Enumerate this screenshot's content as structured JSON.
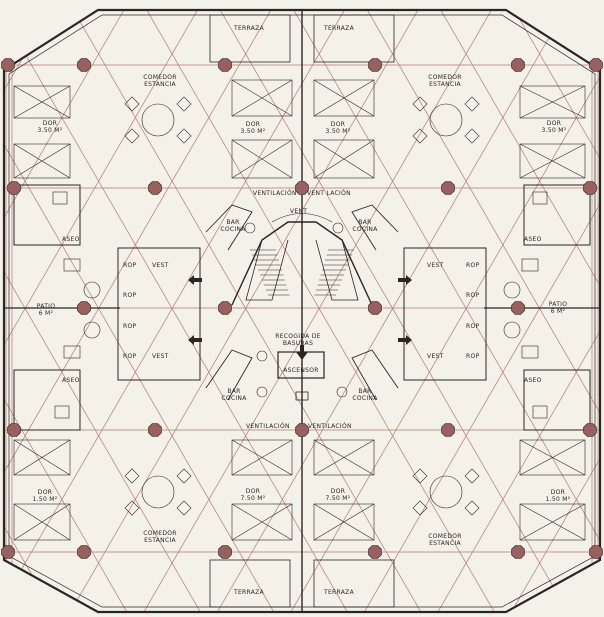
{
  "plan": {
    "colors": {
      "paper": "#f4f1e8",
      "ink": "#2b2622",
      "grid": "#b07a7a",
      "column": "#9a5f5f"
    },
    "labels": {
      "terraza": "TERRAZA",
      "comedor": "COMEDOR",
      "estancia": "ESTANCIA",
      "dor": "DOR",
      "dor_area_a": "3.50 M²",
      "dor_area_b": "3.50 M²",
      "dor_area_c": "3.50 M²",
      "dor_area_d": "3.50 M²",
      "dor_area_e": "1.50 M²",
      "dor_area_f": "7.50 M²",
      "dor_area_g": "7.50 M²",
      "dor_area_h": "1.50 M²",
      "ventilacion_a": "VENTILACIÓN",
      "ventilacion_b": "VENT LACIÓN",
      "ventilacion_c": "VENTILACIÓN",
      "ventilacion_d": "VENTILACIÓN",
      "vent_small": "VENT",
      "bar": "BAR",
      "cocina": "COCINA",
      "aseo": "ASEO",
      "vest": "VEST",
      "rop": "ROP",
      "patio": "PATIO",
      "patio_area": "6 M²",
      "recogida_1": "RECOGIDA DE",
      "recogida_2": "BASURAS",
      "ascensor": "ASCENSOR"
    }
  }
}
